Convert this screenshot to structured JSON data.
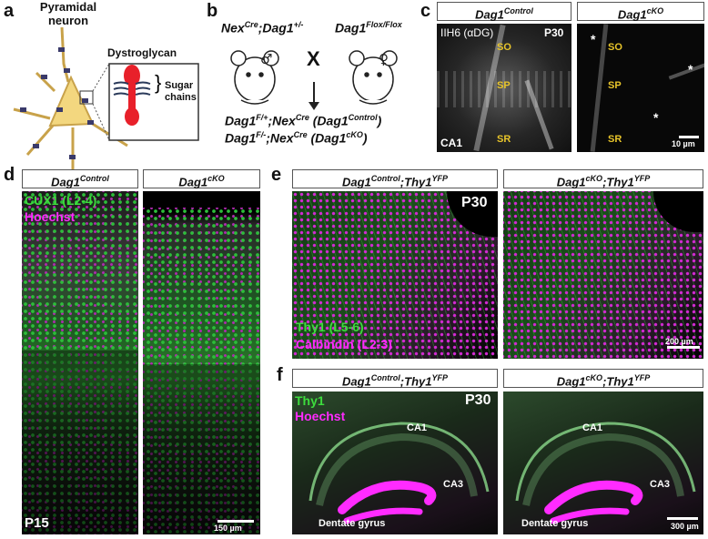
{
  "panels": {
    "a": {
      "label": "a",
      "title": "Pyramidal neuron",
      "dystroglycan": "Dystroglycan",
      "sugar": "Sugar chains"
    },
    "b": {
      "label": "b",
      "parent1_base": "Nex",
      "parent1_sup": "Cre",
      "parent1_mid": ";Dag1",
      "parent1_sup2": "+/-",
      "parent2_base": "Dag1",
      "parent2_sup": "Flox/Flox",
      "cross": "X",
      "off1_a": "Dag1",
      "off1_sup1": "F/+",
      "off1_b": ";Nex",
      "off1_sup2": "Cre",
      "off1_c": " (Dag1",
      "off1_sup3": "Control",
      "off1_d": ")",
      "off2_a": "Dag1",
      "off2_sup1": "F/-",
      "off2_b": ";Nex",
      "off2_sup2": "Cre",
      "off2_c": " (Dag1",
      "off2_sup3": "cKO",
      "off2_d": ")"
    },
    "c": {
      "label": "c",
      "hdr_left_base": "Dag1",
      "hdr_left_sup": "Control",
      "hdr_right_base": "Dag1",
      "hdr_right_sup": "cKO",
      "stain": "IIH6 (αDG)",
      "age": "P30",
      "so": "SO",
      "sp": "SP",
      "sr": "SR",
      "region": "CA1",
      "scale": "10 µm",
      "asterisk": "*"
    },
    "d": {
      "label": "d",
      "hdr_left_base": "Dag1",
      "hdr_left_sup": "Control",
      "hdr_right_base": "Dag1",
      "hdr_right_sup": "cKO",
      "marker1": "CUX1 (L2-4)",
      "marker2": "Hoechst",
      "age": "P15",
      "scale": "150 µm"
    },
    "e": {
      "label": "e",
      "hdr_left_base": "Dag1",
      "hdr_left_sup": "Control",
      "hdr_left_mid": ";Thy1",
      "hdr_left_sup2": "YFP",
      "hdr_right_base": "Dag1",
      "hdr_right_sup": "cKO",
      "hdr_right_mid": ";Thy1",
      "hdr_right_sup2": "YFP",
      "age": "P30",
      "marker1": "Thy1 (L5-6)",
      "marker2": "Calbindin (L2-3)",
      "scale": "200 µm"
    },
    "f": {
      "label": "f",
      "hdr_left_base": "Dag1",
      "hdr_left_sup": "Control",
      "hdr_left_mid": ";Thy1",
      "hdr_left_sup2": "YFP",
      "hdr_right_base": "Dag1",
      "hdr_right_sup": "cKO",
      "hdr_right_mid": ";Thy1",
      "hdr_right_sup2": "YFP",
      "marker1": "Thy1",
      "marker2": "Hoechst",
      "age": "P30",
      "ca1": "CA1",
      "ca3": "CA3",
      "dg": "Dentate gyrus",
      "scale": "300 µm"
    }
  },
  "colors": {
    "green": "#3ddc3d",
    "magenta": "#ff2bff",
    "yellow": "#e8c52a",
    "soma": "#f3d77f",
    "dystroglycan": "#e8202a"
  }
}
